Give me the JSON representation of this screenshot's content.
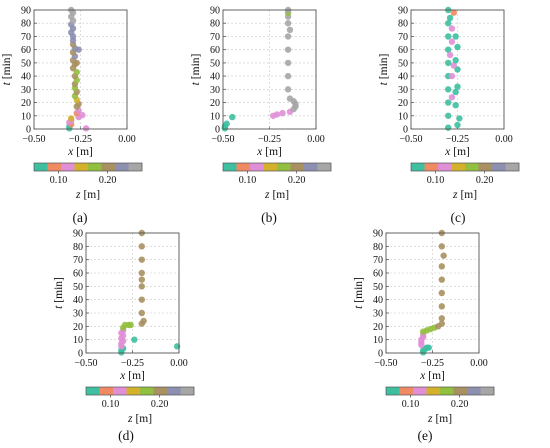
{
  "chart_data": [
    {
      "type": "scatter",
      "panel_label": "(a)",
      "xlabel_var": "x",
      "xlabel_unit": "[m]",
      "ylabel_var": "t",
      "ylabel_unit": "[min]",
      "colorbar_label_var": "z",
      "colorbar_label_unit": "[m]",
      "xlim": [
        -0.5,
        0.0
      ],
      "ylim": [
        0,
        90
      ],
      "x_ticks": [
        "−0.50",
        "−0.25",
        "0.00"
      ],
      "y_ticks": [
        "0",
        "10",
        "20",
        "30",
        "40",
        "50",
        "60",
        "70",
        "80",
        "90"
      ],
      "colorbar_ticks": [
        "0.10",
        "0.20"
      ],
      "vline": -0.25,
      "points": [
        {
          "x": -0.31,
          "y": 0.5,
          "z": 0.07
        },
        {
          "x": -0.31,
          "y": 2,
          "z": 0.07
        },
        {
          "x": -0.3,
          "y": 3.5,
          "z": 0.08
        },
        {
          "x": -0.31,
          "y": 5,
          "z": 0.12
        },
        {
          "x": -0.3,
          "y": 6.5,
          "z": 0.13
        },
        {
          "x": -0.3,
          "y": 8,
          "z": 0.14
        },
        {
          "x": -0.22,
          "y": 0.5,
          "z": 0.13
        },
        {
          "x": -0.24,
          "y": 10.5,
          "z": 0.12
        },
        {
          "x": -0.26,
          "y": 9,
          "z": 0.13
        },
        {
          "x": -0.27,
          "y": 12,
          "z": 0.1
        },
        {
          "x": -0.26,
          "y": 14,
          "z": 0.12
        },
        {
          "x": -0.27,
          "y": 17,
          "z": 0.2
        },
        {
          "x": -0.26,
          "y": 19,
          "z": 0.21
        },
        {
          "x": -0.27,
          "y": 22,
          "z": 0.16
        },
        {
          "x": -0.28,
          "y": 25,
          "z": 0.18
        },
        {
          "x": -0.27,
          "y": 28,
          "z": 0.19
        },
        {
          "x": -0.28,
          "y": 31,
          "z": 0.18
        },
        {
          "x": -0.28,
          "y": 34,
          "z": 0.19
        },
        {
          "x": -0.27,
          "y": 37,
          "z": 0.18
        },
        {
          "x": -0.28,
          "y": 40,
          "z": 0.19
        },
        {
          "x": -0.27,
          "y": 43,
          "z": 0.17
        },
        {
          "x": -0.29,
          "y": 46,
          "z": 0.19
        },
        {
          "x": -0.28,
          "y": 49,
          "z": 0.2
        },
        {
          "x": -0.29,
          "y": 52,
          "z": 0.21
        },
        {
          "x": -0.28,
          "y": 55,
          "z": 0.22
        },
        {
          "x": -0.29,
          "y": 58,
          "z": 0.21
        },
        {
          "x": -0.28,
          "y": 61,
          "z": 0.22
        },
        {
          "x": -0.29,
          "y": 64,
          "z": 0.21
        },
        {
          "x": -0.29,
          "y": 67,
          "z": 0.22
        },
        {
          "x": -0.29,
          "y": 70,
          "z": 0.23
        },
        {
          "x": -0.3,
          "y": 73,
          "z": 0.22
        },
        {
          "x": -0.29,
          "y": 76,
          "z": 0.24
        },
        {
          "x": -0.3,
          "y": 79,
          "z": 0.24
        },
        {
          "x": -0.29,
          "y": 82,
          "z": 0.25
        },
        {
          "x": -0.3,
          "y": 85,
          "z": 0.25
        },
        {
          "x": -0.29,
          "y": 88,
          "z": 0.25
        },
        {
          "x": -0.3,
          "y": 90,
          "z": 0.25
        },
        {
          "x": -0.26,
          "y": 60,
          "z": 0.22
        },
        {
          "x": -0.27,
          "y": 50,
          "z": 0.21
        }
      ]
    },
    {
      "type": "scatter",
      "panel_label": "(b)",
      "xlabel_var": "x",
      "xlabel_unit": "[m]",
      "ylabel_var": "t",
      "ylabel_unit": "[min]",
      "colorbar_label_var": "z",
      "colorbar_label_unit": "[m]",
      "xlim": [
        -0.5,
        0.0
      ],
      "ylim": [
        0,
        90
      ],
      "x_ticks": [
        "−0.50",
        "−0.25",
        "0.00"
      ],
      "y_ticks": [
        "0",
        "10",
        "20",
        "30",
        "40",
        "50",
        "60",
        "70",
        "80",
        "90"
      ],
      "colorbar_ticks": [
        "0.10",
        "0.20"
      ],
      "vline": -0.25,
      "points": [
        {
          "x": -0.49,
          "y": 0.5,
          "z": 0.07
        },
        {
          "x": -0.49,
          "y": 2,
          "z": 0.07
        },
        {
          "x": -0.48,
          "y": 4,
          "z": 0.07
        },
        {
          "x": -0.45,
          "y": 9,
          "z": 0.07
        },
        {
          "x": -0.23,
          "y": 10,
          "z": 0.13
        },
        {
          "x": -0.21,
          "y": 11,
          "z": 0.13
        },
        {
          "x": -0.18,
          "y": 12,
          "z": 0.13
        },
        {
          "x": -0.14,
          "y": 13,
          "z": 0.13
        },
        {
          "x": -0.12,
          "y": 15,
          "z": 0.25
        },
        {
          "x": -0.11,
          "y": 17,
          "z": 0.25
        },
        {
          "x": -0.11,
          "y": 19,
          "z": 0.25
        },
        {
          "x": -0.12,
          "y": 21,
          "z": 0.25
        },
        {
          "x": -0.14,
          "y": 23,
          "z": 0.26
        },
        {
          "x": -0.15,
          "y": 30,
          "z": 0.26
        },
        {
          "x": -0.15,
          "y": 40,
          "z": 0.26
        },
        {
          "x": -0.15,
          "y": 50,
          "z": 0.26
        },
        {
          "x": -0.15,
          "y": 60,
          "z": 0.26
        },
        {
          "x": -0.15,
          "y": 70,
          "z": 0.26
        },
        {
          "x": -0.14,
          "y": 75,
          "z": 0.26
        },
        {
          "x": -0.15,
          "y": 80,
          "z": 0.26
        },
        {
          "x": -0.15,
          "y": 85,
          "z": 0.26
        },
        {
          "x": -0.15,
          "y": 88,
          "z": 0.18
        },
        {
          "x": -0.15,
          "y": 90,
          "z": 0.26
        }
      ]
    },
    {
      "type": "scatter",
      "panel_label": "(c)",
      "xlabel_var": "x",
      "xlabel_unit": "[m]",
      "ylabel_var": "t",
      "ylabel_unit": "[min]",
      "colorbar_label_var": "z",
      "colorbar_label_unit": "[m]",
      "xlim": [
        -0.5,
        0.0
      ],
      "ylim": [
        0,
        90
      ],
      "x_ticks": [
        "−0.50",
        "−0.25",
        "0.00"
      ],
      "y_ticks": [
        "0",
        "10",
        "20",
        "30",
        "40",
        "50",
        "60",
        "70",
        "80",
        "90"
      ],
      "colorbar_ticks": [
        "0.10",
        "0.20"
      ],
      "vline": -0.25,
      "points": [
        {
          "x": -0.3,
          "y": 1,
          "z": 0.06
        },
        {
          "x": -0.3,
          "y": 10,
          "z": 0.06
        },
        {
          "x": -0.3,
          "y": 20,
          "z": 0.06
        },
        {
          "x": -0.3,
          "y": 30,
          "z": 0.06
        },
        {
          "x": -0.3,
          "y": 40,
          "z": 0.06
        },
        {
          "x": -0.3,
          "y": 50,
          "z": 0.06
        },
        {
          "x": -0.3,
          "y": 60,
          "z": 0.06
        },
        {
          "x": -0.3,
          "y": 70,
          "z": 0.06
        },
        {
          "x": -0.3,
          "y": 80,
          "z": 0.06
        },
        {
          "x": -0.3,
          "y": 90,
          "z": 0.06
        },
        {
          "x": -0.25,
          "y": 3,
          "z": 0.06
        },
        {
          "x": -0.24,
          "y": 8,
          "z": 0.06
        },
        {
          "x": -0.26,
          "y": 18,
          "z": 0.06
        },
        {
          "x": -0.25,
          "y": 32,
          "z": 0.06
        },
        {
          "x": -0.25,
          "y": 45,
          "z": 0.06
        },
        {
          "x": -0.25,
          "y": 62,
          "z": 0.06
        },
        {
          "x": -0.26,
          "y": 70,
          "z": 0.06
        },
        {
          "x": -0.27,
          "y": 88,
          "z": 0.1
        },
        {
          "x": -0.28,
          "y": 24,
          "z": 0.11
        },
        {
          "x": -0.28,
          "y": 40,
          "z": 0.11
        },
        {
          "x": -0.27,
          "y": 48,
          "z": 0.13
        },
        {
          "x": -0.29,
          "y": 56,
          "z": 0.11
        },
        {
          "x": -0.28,
          "y": 66,
          "z": 0.12
        },
        {
          "x": -0.28,
          "y": 76,
          "z": 0.12
        },
        {
          "x": -0.29,
          "y": 84,
          "z": 0.06
        },
        {
          "x": -0.26,
          "y": 28,
          "z": 0.06
        },
        {
          "x": -0.26,
          "y": 52,
          "z": 0.06
        }
      ]
    },
    {
      "type": "scatter",
      "panel_label": "(d)",
      "xlabel_var": "x",
      "xlabel_unit": "[m]",
      "ylabel_var": "t",
      "ylabel_unit": "[min]",
      "colorbar_label_var": "z",
      "colorbar_label_unit": "[m]",
      "xlim": [
        -0.5,
        0.0
      ],
      "ylim": [
        0,
        90
      ],
      "x_ticks": [
        "−0.50",
        "−0.25",
        "0.00"
      ],
      "y_ticks": [
        "0",
        "10",
        "20",
        "30",
        "40",
        "50",
        "60",
        "70",
        "80",
        "90"
      ],
      "colorbar_ticks": [
        "0.10",
        "0.20"
      ],
      "vline": -0.25,
      "points": [
        {
          "x": -0.31,
          "y": 0.5,
          "z": 0.06
        },
        {
          "x": -0.31,
          "y": 2,
          "z": 0.06
        },
        {
          "x": -0.3,
          "y": 3.5,
          "z": 0.07
        },
        {
          "x": -0.31,
          "y": 5,
          "z": 0.13
        },
        {
          "x": -0.31,
          "y": 7,
          "z": 0.12
        },
        {
          "x": -0.3,
          "y": 9,
          "z": 0.13
        },
        {
          "x": -0.31,
          "y": 11,
          "z": 0.12
        },
        {
          "x": -0.3,
          "y": 13,
          "z": 0.13
        },
        {
          "x": -0.31,
          "y": 15,
          "z": 0.12
        },
        {
          "x": -0.3,
          "y": 17,
          "z": 0.13
        },
        {
          "x": -0.3,
          "y": 19,
          "z": 0.18
        },
        {
          "x": -0.29,
          "y": 21,
          "z": 0.18
        },
        {
          "x": -0.27,
          "y": 21,
          "z": 0.17
        },
        {
          "x": -0.26,
          "y": 21,
          "z": 0.18
        },
        {
          "x": -0.24,
          "y": 10,
          "z": 0.06
        },
        {
          "x": -0.2,
          "y": 22,
          "z": 0.19
        },
        {
          "x": -0.19,
          "y": 24,
          "z": 0.19
        },
        {
          "x": -0.2,
          "y": 30,
          "z": 0.19
        },
        {
          "x": -0.2,
          "y": 40,
          "z": 0.19
        },
        {
          "x": -0.2,
          "y": 50,
          "z": 0.19
        },
        {
          "x": -0.2,
          "y": 55,
          "z": 0.2
        },
        {
          "x": -0.2,
          "y": 60,
          "z": 0.19
        },
        {
          "x": -0.2,
          "y": 70,
          "z": 0.19
        },
        {
          "x": -0.2,
          "y": 80,
          "z": 0.19
        },
        {
          "x": -0.2,
          "y": 90,
          "z": 0.19
        },
        {
          "x": -0.01,
          "y": 5,
          "z": 0.06
        }
      ]
    },
    {
      "type": "scatter",
      "panel_label": "(e)",
      "xlabel_var": "x",
      "xlabel_unit": "[m]",
      "ylabel_var": "t",
      "ylabel_unit": "[min]",
      "colorbar_label_var": "z",
      "colorbar_label_unit": "[m]",
      "xlim": [
        -0.5,
        0.0
      ],
      "ylim": [
        0,
        90
      ],
      "x_ticks": [
        "−0.50",
        "−0.25",
        "0.00"
      ],
      "y_ticks": [
        "0",
        "10",
        "20",
        "30",
        "40",
        "50",
        "60",
        "70",
        "80",
        "90"
      ],
      "colorbar_ticks": [
        "0.10",
        "0.20"
      ],
      "vline": -0.25,
      "points": [
        {
          "x": -0.3,
          "y": 0.5,
          "z": 0.06
        },
        {
          "x": -0.3,
          "y": 2,
          "z": 0.06
        },
        {
          "x": -0.29,
          "y": 3,
          "z": 0.07
        },
        {
          "x": -0.28,
          "y": 4,
          "z": 0.06
        },
        {
          "x": -0.27,
          "y": 4,
          "z": 0.06
        },
        {
          "x": -0.31,
          "y": 6,
          "z": 0.13
        },
        {
          "x": -0.31,
          "y": 8,
          "z": 0.12
        },
        {
          "x": -0.31,
          "y": 10,
          "z": 0.13
        },
        {
          "x": -0.3,
          "y": 12,
          "z": 0.12
        },
        {
          "x": -0.3,
          "y": 14,
          "z": 0.13
        },
        {
          "x": -0.3,
          "y": 16,
          "z": 0.18
        },
        {
          "x": -0.28,
          "y": 17,
          "z": 0.18
        },
        {
          "x": -0.26,
          "y": 18,
          "z": 0.18
        },
        {
          "x": -0.24,
          "y": 19,
          "z": 0.18
        },
        {
          "x": -0.22,
          "y": 20,
          "z": 0.19
        },
        {
          "x": -0.2,
          "y": 22,
          "z": 0.19
        },
        {
          "x": -0.2,
          "y": 26,
          "z": 0.19
        },
        {
          "x": -0.2,
          "y": 35,
          "z": 0.19
        },
        {
          "x": -0.2,
          "y": 45,
          "z": 0.19
        },
        {
          "x": -0.2,
          "y": 55,
          "z": 0.19
        },
        {
          "x": -0.2,
          "y": 65,
          "z": 0.19
        },
        {
          "x": -0.19,
          "y": 73,
          "z": 0.2
        },
        {
          "x": -0.2,
          "y": 80,
          "z": 0.19
        },
        {
          "x": -0.2,
          "y": 90,
          "z": 0.19
        }
      ]
    }
  ],
  "colorbar_colors": [
    "#3dbfa0",
    "#ef8a62",
    "#e08fd6",
    "#d3b12b",
    "#92bf3f",
    "#a89060",
    "#8c8fb0",
    "#a6a6a6"
  ]
}
